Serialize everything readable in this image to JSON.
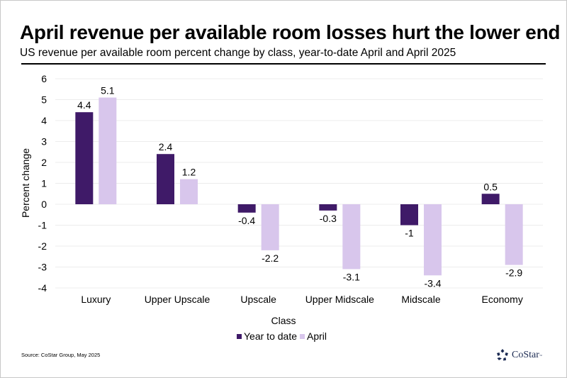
{
  "header": {
    "title": "April revenue per available room losses hurt the lower end",
    "subtitle": "US revenue per available room percent change by class, year-to-date April and April 2025"
  },
  "footer": {
    "source": "Source: CoStar Group, May 2025",
    "logo_text": "CoStar",
    "logo_tm": "™",
    "logo_icon": "costar-star-icon"
  },
  "colors": {
    "year_to_date": "#3f1a68",
    "april": "#d8c6ec",
    "gridline": "#ececec",
    "text": "#000000"
  },
  "chart_data": {
    "type": "bar",
    "title": "April revenue per available room losses hurt the lower end",
    "subtitle": "US revenue per available room percent change by class, year-to-date April and April 2025",
    "xlabel": "Class",
    "ylabel": "Percent change",
    "ylim": [
      -4,
      6
    ],
    "yticks": [
      6,
      5,
      4,
      3,
      2,
      1,
      0,
      -1,
      -2,
      -3,
      -4
    ],
    "grid": true,
    "legend_position": "bottom",
    "categories": [
      "Luxury",
      "Upper Upscale",
      "Upscale",
      "Upper Midscale",
      "Midscale",
      "Economy"
    ],
    "series": [
      {
        "name": "Year to date",
        "values": [
          4.4,
          2.4,
          -0.4,
          -0.3,
          -1,
          0.5
        ],
        "labels": [
          "4.4",
          "2.4",
          "-0.4",
          "-0.3",
          "-1",
          "0.5"
        ]
      },
      {
        "name": "April",
        "values": [
          5.1,
          1.2,
          -2.2,
          -3.1,
          -3.4,
          -2.9
        ],
        "labels": [
          "5.1",
          "1.2",
          "-2.2",
          "-3.1",
          "-3.4",
          "-2.9"
        ]
      }
    ]
  }
}
